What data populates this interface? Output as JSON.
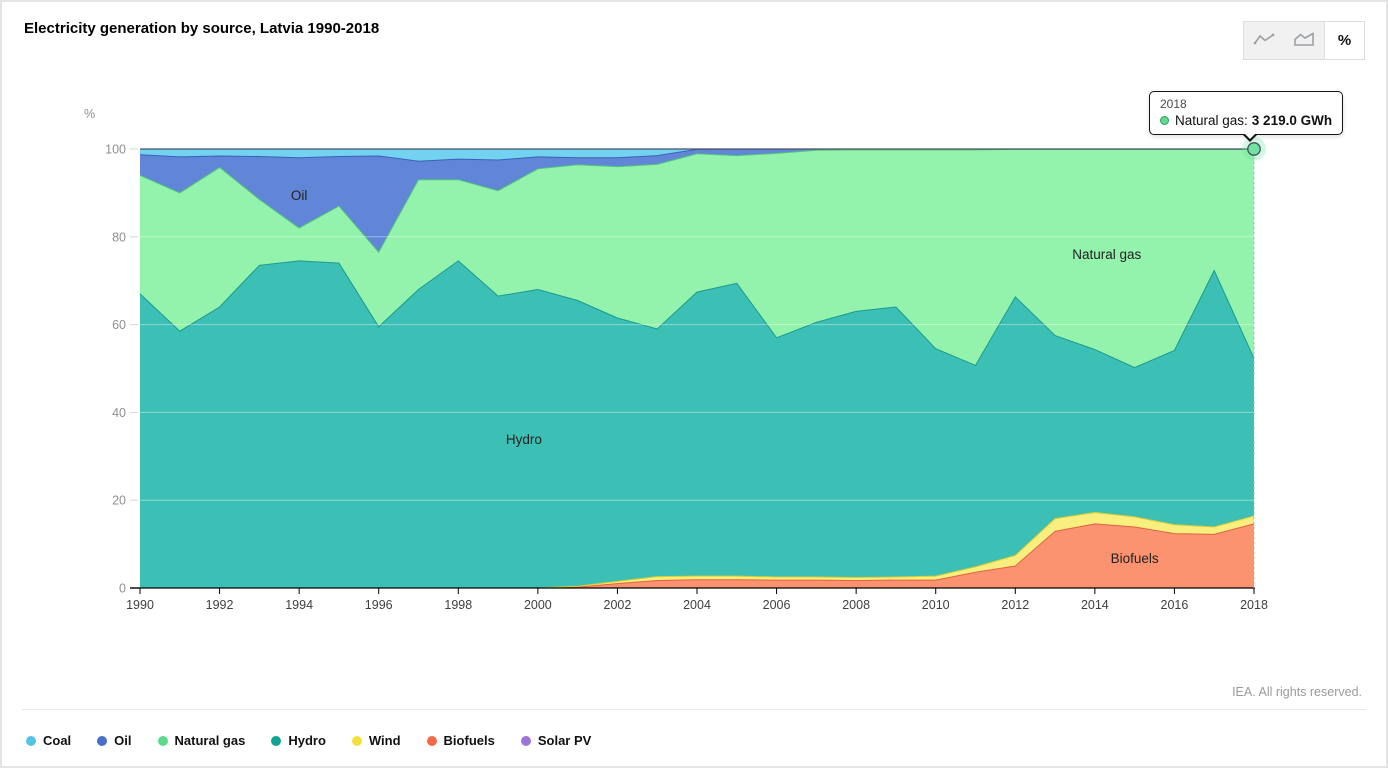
{
  "header": {
    "title": "Electricity generation by source, Latvia 1990-2018"
  },
  "toolbar": {
    "line_button": "line-chart",
    "area_button": "area-chart",
    "percent_label": "%"
  },
  "tooltip": {
    "year": "2018",
    "series_label": "Natural gas:",
    "value": "3 219.0 GWh",
    "marker_color": "#5fd98a"
  },
  "footer": {
    "credit": "IEA. All rights reserved."
  },
  "legend": [
    {
      "label": "Coal",
      "color": "#55c3e8"
    },
    {
      "label": "Oil",
      "color": "#4a6fc9"
    },
    {
      "label": "Natural gas",
      "color": "#5fd98a"
    },
    {
      "label": "Hydro",
      "color": "#0fa295"
    },
    {
      "label": "Wind",
      "color": "#f2e13c"
    },
    {
      "label": "Biofuels",
      "color": "#f26a48"
    },
    {
      "label": "Solar PV",
      "color": "#9c75d6"
    }
  ],
  "chart_data": {
    "type": "area",
    "stacking": "percent",
    "title": "Electricity generation by source, Latvia 1990-2018",
    "unit": "%",
    "ylim": [
      0,
      100
    ],
    "y_ticks": [
      0,
      20,
      40,
      60,
      80,
      100
    ],
    "x_tick_step": 2,
    "grid": true,
    "x": [
      1990,
      1991,
      1992,
      1993,
      1994,
      1995,
      1996,
      1997,
      1998,
      1999,
      2000,
      2001,
      2002,
      2003,
      2004,
      2005,
      2006,
      2007,
      2008,
      2009,
      2010,
      2011,
      2012,
      2013,
      2014,
      2015,
      2016,
      2017,
      2018
    ],
    "series": [
      {
        "name": "Biofuels",
        "fill": "#fb9270",
        "line": "#df6440",
        "values": [
          0,
          0,
          0,
          0,
          0,
          0,
          0,
          0,
          0,
          0,
          0,
          0.2,
          1.0,
          1.7,
          1.9,
          1.9,
          1.8,
          1.8,
          1.7,
          1.8,
          1.8,
          3.6,
          5.0,
          12.9,
          14.6,
          13.9,
          12.4,
          12.2,
          14.6
        ]
      },
      {
        "name": "Wind",
        "fill": "#f9ef7e",
        "line": "#ddcc33",
        "values": [
          0,
          0,
          0,
          0,
          0,
          0,
          0,
          0,
          0,
          0,
          0,
          0.2,
          0.5,
          0.9,
          0.8,
          0.8,
          0.7,
          0.7,
          0.7,
          0.7,
          0.9,
          1.2,
          2.4,
          2.9,
          2.6,
          2.3,
          2.0,
          1.7,
          1.8
        ]
      },
      {
        "name": "Hydro",
        "fill": "#3cbfb4",
        "line": "#1b9a8f",
        "values": [
          67.0,
          58.5,
          64.0,
          73.5,
          74.5,
          74.0,
          59.5,
          68.0,
          74.5,
          66.5,
          68.0,
          65.1,
          60.0,
          56.4,
          64.7,
          66.7,
          54.5,
          58.0,
          60.6,
          61.5,
          51.8,
          45.9,
          58.9,
          41.7,
          37.1,
          34.0,
          39.7,
          58.4,
          35.9
        ]
      },
      {
        "name": "Natural gas",
        "fill": "#93f2ab",
        "line": "#52c47b",
        "values": [
          27.0,
          31.5,
          31.8,
          15.0,
          7.5,
          13.0,
          17.0,
          25.0,
          18.5,
          24.0,
          27.5,
          30.9,
          34.5,
          37.5,
          31.5,
          29.1,
          42.0,
          39.2,
          36.8,
          35.8,
          45.3,
          49.1,
          33.6,
          42.4,
          45.6,
          49.7,
          45.8,
          27.6,
          47.6
        ]
      },
      {
        "name": "Oil",
        "fill": "#6186d8",
        "line": "#3c60b5",
        "values": [
          4.7,
          8.2,
          2.6,
          9.8,
          16.0,
          11.3,
          21.9,
          4.2,
          4.7,
          7.0,
          2.7,
          1.6,
          2.0,
          2.0,
          1.0,
          1.5,
          1.0,
          0.3,
          0.2,
          0.2,
          0.2,
          0.2,
          0.1,
          0.1,
          0.1,
          0.1,
          0.1,
          0.1,
          0.1
        ]
      },
      {
        "name": "Coal",
        "fill": "#72d2f0",
        "line": "#3fb1dc",
        "values": [
          1.3,
          1.8,
          1.6,
          1.7,
          2.0,
          1.7,
          1.6,
          2.8,
          2.3,
          2.5,
          1.8,
          2.0,
          2.0,
          1.5,
          0.1,
          0,
          0,
          0,
          0,
          0,
          0,
          0,
          0,
          0,
          0,
          0,
          0,
          0,
          0
        ]
      },
      {
        "name": "Solar PV",
        "fill": "#a98ae0",
        "line": "#4b5266",
        "values": [
          0,
          0,
          0,
          0,
          0,
          0,
          0,
          0,
          0,
          0,
          0,
          0,
          0,
          0,
          0,
          0,
          0,
          0,
          0,
          0,
          0,
          0,
          0,
          0,
          0,
          0,
          0,
          0,
          0
        ]
      }
    ],
    "area_labels": [
      {
        "text": "Oil",
        "x": 1994.0,
        "y": 89.3
      },
      {
        "text": "Hydro",
        "x": 1999.65,
        "y": 33.7
      },
      {
        "text": "Natural gas",
        "x": 2014.3,
        "y": 75.9
      },
      {
        "text": "Biofuels",
        "x": 2015.0,
        "y": 6.6
      }
    ],
    "hover": {
      "x": 2018,
      "y": 100,
      "series": "Natural gas",
      "marker_fill": "#72e4a1"
    },
    "legend_position": "bottom",
    "top_line_color": "#4b5266"
  }
}
